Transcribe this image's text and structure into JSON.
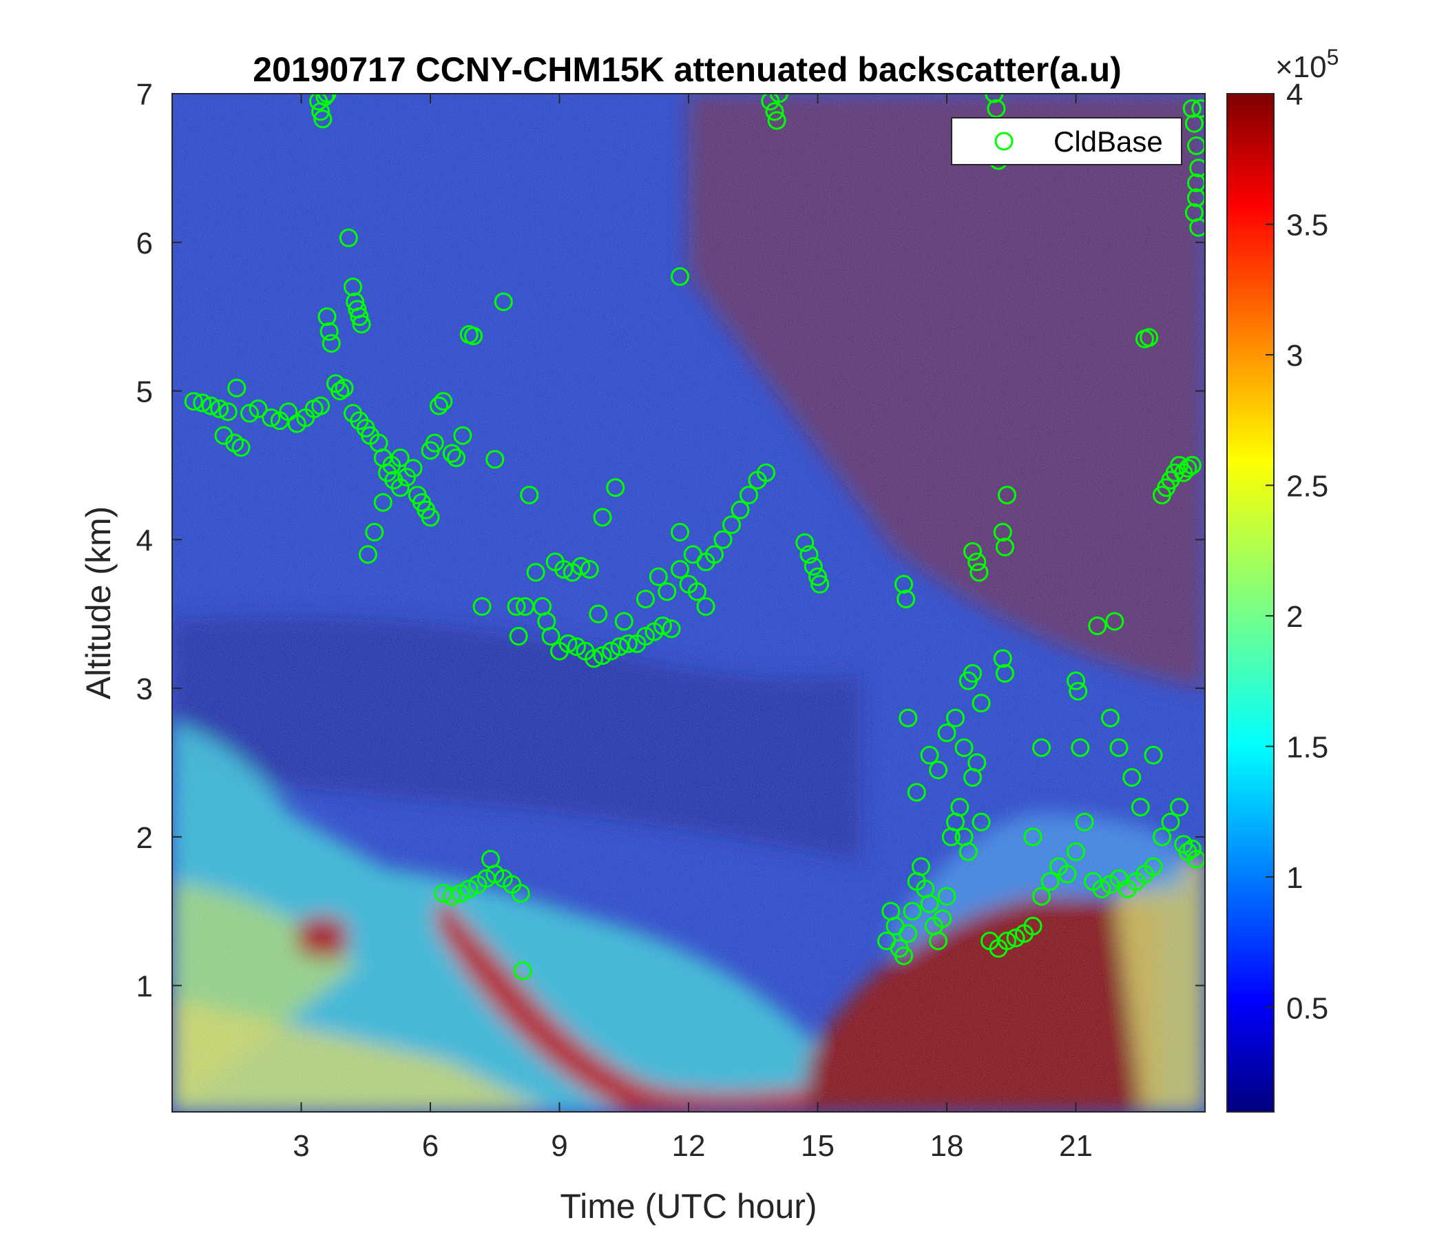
{
  "chart_data": {
    "type": "heatmap",
    "title": "20190717 CCNY-CHM15K attenuated backscatter(a.u)",
    "xlabel": "Time (UTC hour)",
    "ylabel": "Altitude (km)",
    "xlim": [
      0,
      24
    ],
    "ylim": [
      0.15,
      7
    ],
    "x_ticks": [
      3,
      6,
      9,
      12,
      15,
      18,
      21
    ],
    "x_tick_labels": [
      "3",
      "6",
      "9",
      "12",
      "15",
      "18",
      "21"
    ],
    "y_ticks": [
      1,
      2,
      3,
      4,
      5,
      6,
      7
    ],
    "y_tick_labels": [
      "1",
      "2",
      "3",
      "4",
      "5",
      "6",
      "7"
    ],
    "colorbar": {
      "colormap": "jet",
      "range": [
        0.1,
        4
      ],
      "ticks": [
        0.5,
        1,
        1.5,
        2,
        2.5,
        3,
        3.5,
        4
      ],
      "tick_labels": [
        "0.5",
        "1",
        "1.5",
        "2",
        "2.5",
        "3",
        "3.5",
        "4"
      ],
      "multiplier_base": "×10",
      "multiplier_exponent": "5"
    },
    "legend": {
      "placement": "top-right",
      "entries": [
        {
          "name": "CldBase",
          "marker": "circle",
          "color": "#00ff00"
        }
      ]
    },
    "series": [
      {
        "name": "CldBase",
        "marker_color": "#00ff00",
        "points": [
          [
            0.5,
            4.93
          ],
          [
            0.7,
            4.92
          ],
          [
            0.9,
            4.9
          ],
          [
            1.1,
            4.88
          ],
          [
            1.3,
            4.86
          ],
          [
            1.2,
            4.7
          ],
          [
            1.45,
            4.65
          ],
          [
            1.6,
            4.62
          ],
          [
            1.5,
            5.02
          ],
          [
            1.8,
            4.85
          ],
          [
            2.0,
            4.88
          ],
          [
            2.3,
            4.82
          ],
          [
            2.5,
            4.8
          ],
          [
            2.7,
            4.86
          ],
          [
            2.9,
            4.78
          ],
          [
            3.1,
            4.82
          ],
          [
            3.3,
            4.88
          ],
          [
            3.45,
            4.9
          ],
          [
            3.4,
            6.95
          ],
          [
            3.45,
            6.88
          ],
          [
            3.5,
            6.83
          ],
          [
            3.55,
            6.98
          ],
          [
            3.6,
            7.0
          ],
          [
            3.6,
            5.5
          ],
          [
            3.65,
            5.4
          ],
          [
            3.7,
            5.32
          ],
          [
            3.8,
            5.05
          ],
          [
            3.9,
            5.0
          ],
          [
            4.0,
            5.02
          ],
          [
            4.1,
            6.03
          ],
          [
            4.2,
            5.7
          ],
          [
            4.25,
            5.6
          ],
          [
            4.3,
            5.55
          ],
          [
            4.35,
            5.5
          ],
          [
            4.4,
            5.45
          ],
          [
            4.2,
            4.85
          ],
          [
            4.35,
            4.8
          ],
          [
            4.5,
            4.75
          ],
          [
            4.6,
            4.7
          ],
          [
            4.8,
            4.65
          ],
          [
            4.9,
            4.55
          ],
          [
            5.0,
            4.45
          ],
          [
            5.15,
            4.4
          ],
          [
            5.3,
            4.35
          ],
          [
            5.45,
            4.42
          ],
          [
            5.6,
            4.48
          ],
          [
            5.7,
            4.3
          ],
          [
            5.8,
            4.25
          ],
          [
            5.9,
            4.2
          ],
          [
            6.0,
            4.15
          ],
          [
            4.55,
            3.9
          ],
          [
            4.7,
            4.05
          ],
          [
            4.9,
            4.25
          ],
          [
            5.1,
            4.5
          ],
          [
            5.3,
            4.55
          ],
          [
            6.0,
            4.6
          ],
          [
            6.1,
            4.65
          ],
          [
            6.2,
            4.9
          ],
          [
            6.3,
            4.93
          ],
          [
            6.5,
            4.58
          ],
          [
            6.6,
            4.55
          ],
          [
            6.75,
            4.7
          ],
          [
            6.9,
            5.38
          ],
          [
            7.0,
            5.37
          ],
          [
            7.5,
            4.54
          ],
          [
            7.7,
            5.6
          ],
          [
            8.3,
            4.3
          ],
          [
            7.2,
            3.55
          ],
          [
            8.0,
            3.55
          ],
          [
            8.05,
            3.35
          ],
          [
            8.2,
            3.55
          ],
          [
            8.45,
            3.78
          ],
          [
            8.6,
            3.55
          ],
          [
            8.7,
            3.45
          ],
          [
            8.8,
            3.35
          ],
          [
            9.0,
            3.25
          ],
          [
            9.2,
            3.3
          ],
          [
            9.4,
            3.28
          ],
          [
            9.6,
            3.25
          ],
          [
            9.8,
            3.2
          ],
          [
            10.0,
            3.22
          ],
          [
            10.2,
            3.25
          ],
          [
            10.4,
            3.28
          ],
          [
            10.6,
            3.3
          ],
          [
            10.8,
            3.3
          ],
          [
            11.0,
            3.35
          ],
          [
            11.2,
            3.38
          ],
          [
            11.4,
            3.42
          ],
          [
            11.6,
            3.4
          ],
          [
            8.9,
            3.85
          ],
          [
            9.1,
            3.8
          ],
          [
            9.3,
            3.78
          ],
          [
            9.5,
            3.82
          ],
          [
            9.7,
            3.8
          ],
          [
            9.9,
            3.5
          ],
          [
            10.0,
            4.15
          ],
          [
            10.3,
            4.35
          ],
          [
            10.5,
            3.45
          ],
          [
            11.0,
            3.6
          ],
          [
            11.3,
            3.75
          ],
          [
            11.5,
            3.65
          ],
          [
            11.8,
            3.8
          ],
          [
            12.0,
            3.7
          ],
          [
            12.2,
            3.65
          ],
          [
            12.4,
            3.55
          ],
          [
            12.1,
            3.9
          ],
          [
            12.4,
            3.85
          ],
          [
            12.6,
            3.9
          ],
          [
            12.8,
            4.0
          ],
          [
            13.0,
            4.1
          ],
          [
            13.2,
            4.2
          ],
          [
            13.4,
            4.3
          ],
          [
            13.6,
            4.4
          ],
          [
            13.8,
            4.45
          ],
          [
            11.8,
            4.05
          ],
          [
            11.8,
            5.77
          ],
          [
            13.9,
            6.95
          ],
          [
            14.0,
            6.88
          ],
          [
            14.05,
            6.82
          ],
          [
            14.1,
            7.0
          ],
          [
            14.7,
            3.98
          ],
          [
            14.8,
            3.9
          ],
          [
            14.9,
            3.82
          ],
          [
            15.0,
            3.75
          ],
          [
            15.05,
            3.7
          ],
          [
            6.3,
            1.62
          ],
          [
            6.5,
            1.6
          ],
          [
            6.7,
            1.62
          ],
          [
            6.9,
            1.65
          ],
          [
            7.1,
            1.68
          ],
          [
            7.3,
            1.72
          ],
          [
            7.5,
            1.75
          ],
          [
            7.7,
            1.72
          ],
          [
            7.4,
            1.85
          ],
          [
            7.9,
            1.68
          ],
          [
            8.1,
            1.62
          ],
          [
            8.15,
            1.1
          ],
          [
            16.6,
            1.3
          ],
          [
            16.7,
            1.5
          ],
          [
            16.8,
            1.4
          ],
          [
            16.9,
            1.25
          ],
          [
            17.0,
            1.2
          ],
          [
            17.1,
            1.35
          ],
          [
            17.2,
            1.5
          ],
          [
            17.3,
            1.7
          ],
          [
            17.4,
            1.8
          ],
          [
            17.5,
            1.65
          ],
          [
            17.6,
            1.55
          ],
          [
            17.7,
            1.4
          ],
          [
            17.8,
            1.3
          ],
          [
            17.9,
            1.45
          ],
          [
            18.0,
            1.6
          ],
          [
            18.1,
            2.0
          ],
          [
            18.2,
            2.1
          ],
          [
            18.3,
            2.2
          ],
          [
            18.4,
            2.0
          ],
          [
            18.5,
            1.9
          ],
          [
            18.6,
            2.4
          ],
          [
            18.7,
            2.5
          ],
          [
            18.8,
            2.1
          ],
          [
            17.0,
            3.7
          ],
          [
            17.05,
            3.6
          ],
          [
            17.1,
            2.8
          ],
          [
            17.3,
            2.3
          ],
          [
            17.6,
            2.55
          ],
          [
            17.8,
            2.45
          ],
          [
            18.0,
            2.7
          ],
          [
            18.2,
            2.8
          ],
          [
            18.4,
            2.6
          ],
          [
            18.5,
            3.05
          ],
          [
            18.6,
            3.1
          ],
          [
            18.6,
            3.92
          ],
          [
            18.7,
            3.85
          ],
          [
            18.75,
            3.78
          ],
          [
            18.8,
            2.9
          ],
          [
            19.0,
            1.3
          ],
          [
            19.2,
            1.25
          ],
          [
            19.4,
            1.3
          ],
          [
            19.6,
            1.32
          ],
          [
            19.8,
            1.35
          ],
          [
            20.0,
            1.4
          ],
          [
            20.2,
            1.6
          ],
          [
            20.4,
            1.7
          ],
          [
            20.6,
            1.8
          ],
          [
            20.8,
            1.75
          ],
          [
            21.0,
            1.9
          ],
          [
            21.2,
            2.1
          ],
          [
            21.4,
            1.7
          ],
          [
            21.6,
            1.65
          ],
          [
            21.8,
            1.68
          ],
          [
            22.0,
            1.72
          ],
          [
            22.2,
            1.65
          ],
          [
            22.4,
            1.7
          ],
          [
            22.6,
            1.75
          ],
          [
            22.8,
            1.8
          ],
          [
            23.0,
            2.0
          ],
          [
            23.2,
            2.1
          ],
          [
            23.4,
            2.2
          ],
          [
            19.1,
            7.0
          ],
          [
            19.15,
            6.9
          ],
          [
            19.2,
            6.55
          ],
          [
            19.3,
            3.2
          ],
          [
            19.35,
            3.1
          ],
          [
            19.4,
            4.3
          ],
          [
            19.3,
            4.05
          ],
          [
            19.35,
            3.95
          ],
          [
            20.0,
            2.0
          ],
          [
            20.2,
            2.6
          ],
          [
            21.0,
            3.05
          ],
          [
            21.05,
            2.98
          ],
          [
            21.1,
            2.6
          ],
          [
            21.5,
            3.42
          ],
          [
            21.8,
            2.8
          ],
          [
            21.9,
            3.45
          ],
          [
            22.0,
            2.6
          ],
          [
            22.3,
            2.4
          ],
          [
            22.5,
            2.2
          ],
          [
            22.8,
            2.55
          ],
          [
            22.6,
            5.35
          ],
          [
            22.7,
            5.36
          ],
          [
            23.0,
            4.3
          ],
          [
            23.1,
            4.35
          ],
          [
            23.2,
            4.4
          ],
          [
            23.3,
            4.45
          ],
          [
            23.4,
            4.5
          ],
          [
            23.5,
            4.45
          ],
          [
            23.6,
            4.48
          ],
          [
            23.7,
            4.5
          ],
          [
            23.7,
            6.9
          ],
          [
            23.75,
            6.8
          ],
          [
            23.8,
            6.65
          ],
          [
            23.85,
            6.5
          ],
          [
            23.8,
            6.3
          ],
          [
            23.75,
            6.2
          ],
          [
            23.8,
            6.4
          ],
          [
            23.85,
            6.1
          ],
          [
            23.9,
            6.9
          ],
          [
            23.5,
            1.95
          ],
          [
            23.6,
            1.9
          ],
          [
            23.7,
            1.92
          ],
          [
            23.8,
            1.85
          ]
        ]
      }
    ]
  }
}
